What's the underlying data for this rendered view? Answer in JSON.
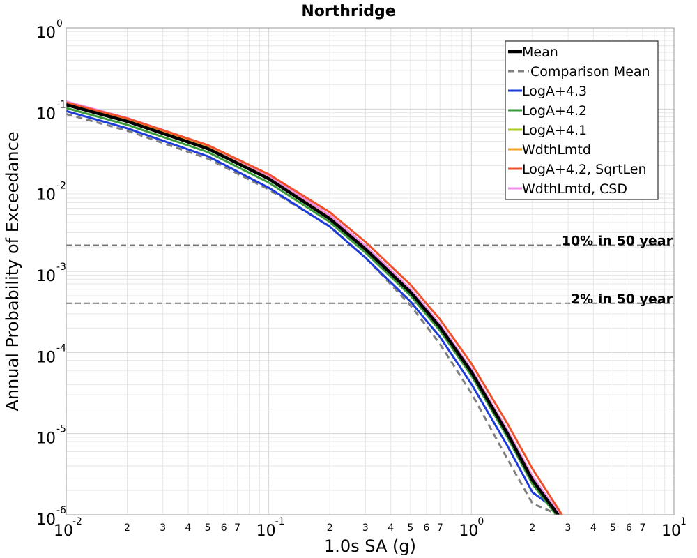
{
  "chart_data": {
    "type": "line",
    "title": "Northridge",
    "xlabel": "1.0s SA (g)",
    "ylabel": "Annual Probability of Exceedance",
    "x_scale": "log",
    "y_scale": "log",
    "xlim": [
      0.01,
      10
    ],
    "ylim": [
      1e-06,
      1
    ],
    "grid": true,
    "legend_position": "top-right",
    "x_major_ticks": [
      {
        "base": "10",
        "exp": "-2",
        "value": 0.01
      },
      {
        "base": "10",
        "exp": "-1",
        "value": 0.1
      },
      {
        "base": "10",
        "exp": "0",
        "value": 1
      },
      {
        "base": "10",
        "exp": "1",
        "value": 10
      }
    ],
    "x_minor_tick_labels": [
      "2",
      "3",
      "4",
      "5",
      "6",
      "7"
    ],
    "y_major_ticks": [
      {
        "base": "10",
        "exp": "0",
        "value": 1
      },
      {
        "base": "10",
        "exp": "-1",
        "value": 0.1
      },
      {
        "base": "10",
        "exp": "-2",
        "value": 0.01
      },
      {
        "base": "10",
        "exp": "-3",
        "value": 0.001
      },
      {
        "base": "10",
        "exp": "-4",
        "value": 0.0001
      },
      {
        "base": "10",
        "exp": "-5",
        "value": 1e-05
      },
      {
        "base": "10",
        "exp": "-6",
        "value": 1e-06
      }
    ],
    "reference_lines": [
      {
        "label": "10% in 50 year",
        "y": 0.0021,
        "color": "#777777"
      },
      {
        "label": "2% in 50 year",
        "y": 0.000404,
        "color": "#777777"
      }
    ],
    "series": [
      {
        "name": "Mean",
        "color": "#000000",
        "width": 4.5,
        "dash": "",
        "x": [
          0.01,
          0.02,
          0.05,
          0.1,
          0.2,
          0.3,
          0.5,
          0.7,
          1.0,
          1.5,
          2.0,
          2.7
        ],
        "y": [
          0.113,
          0.0705,
          0.0325,
          0.0138,
          0.00445,
          0.00188,
          0.000555,
          0.000205,
          5.75e-05,
          1.02e-05,
          2.68e-06,
          9.7e-07
        ]
      },
      {
        "name": "Comparison Mean",
        "color": "#808080",
        "width": 3,
        "dash": "9,6",
        "x": [
          0.01,
          0.02,
          0.05,
          0.1,
          0.2,
          0.3,
          0.5,
          0.7,
          1.0,
          1.5,
          2.0,
          2.6
        ],
        "y": [
          0.087,
          0.0542,
          0.0245,
          0.0102,
          0.0036,
          0.00148,
          0.000383,
          0.000127,
          3.15e-05,
          4.95e-06,
          1.38e-06,
          1.04e-06
        ]
      },
      {
        "name": "LogA+4.3",
        "color": "#1e3cdc",
        "width": 3,
        "dash": "",
        "x": [
          0.01,
          0.02,
          0.05,
          0.1,
          0.2,
          0.3,
          0.5,
          0.7,
          1.0,
          1.5,
          2.0,
          2.7
        ],
        "y": [
          0.0945,
          0.058,
          0.0262,
          0.0107,
          0.00355,
          0.00147,
          0.000425,
          0.000155,
          4.1e-05,
          7.2e-06,
          1.9e-06,
          1.1e-06
        ]
      },
      {
        "name": "LogA+4.2",
        "color": "#3a9a3a",
        "width": 3,
        "dash": "",
        "x": [
          0.01,
          0.02,
          0.05,
          0.1,
          0.2,
          0.3,
          0.5,
          0.7,
          1.0,
          1.5,
          2.0,
          2.7
        ],
        "y": [
          0.103,
          0.064,
          0.0295,
          0.0124,
          0.00405,
          0.0017,
          0.000505,
          0.000185,
          5.2e-05,
          9.2e-06,
          2.4e-06,
          9e-07
        ]
      },
      {
        "name": "LogA+4.1",
        "color": "#a8c81e",
        "width": 3,
        "dash": "",
        "x": [
          0.01,
          0.02,
          0.05,
          0.1,
          0.2,
          0.3,
          0.5,
          0.7,
          1.0,
          1.5,
          2.0,
          2.7
        ],
        "y": [
          0.116,
          0.0735,
          0.0345,
          0.0146,
          0.00478,
          0.002,
          0.000585,
          0.000213,
          5.95e-05,
          1.06e-05,
          2.8e-06,
          1e-06
        ]
      },
      {
        "name": "WdthLmtd",
        "color": "#f0a01e",
        "width": 3,
        "dash": "",
        "x": [
          0.01,
          0.02,
          0.05,
          0.1,
          0.2,
          0.3,
          0.5,
          0.7,
          1.0,
          1.5,
          2.0,
          2.7
        ],
        "y": [
          0.119,
          0.0755,
          0.0352,
          0.0149,
          0.00485,
          0.00203,
          0.000595,
          0.000218,
          6.1e-05,
          1.09e-05,
          2.9e-06,
          1e-06
        ]
      },
      {
        "name": "LogA+4.2, SqrtLen",
        "color": "#f0502a",
        "width": 3,
        "dash": "",
        "x": [
          0.01,
          0.02,
          0.05,
          0.1,
          0.2,
          0.3,
          0.5,
          0.7,
          1.0,
          1.5,
          2.0,
          2.8
        ],
        "y": [
          0.12,
          0.0768,
          0.036,
          0.0157,
          0.00535,
          0.0023,
          0.000685,
          0.000255,
          7.3e-05,
          1.35e-05,
          3.7e-06,
          1e-06
        ]
      },
      {
        "name": "WdthLmtd, CSD",
        "color": "#f08ce6",
        "width": 3,
        "dash": "",
        "x": [
          0.01,
          0.02,
          0.05,
          0.1,
          0.2,
          0.3,
          0.5,
          0.7,
          1.0,
          1.5,
          2.0,
          2.75
        ],
        "y": [
          0.124,
          0.0775,
          0.0358,
          0.0151,
          0.0049,
          0.00206,
          0.000605,
          0.000222,
          6.25e-05,
          1.12e-05,
          3e-06,
          9.8e-07
        ]
      }
    ]
  }
}
